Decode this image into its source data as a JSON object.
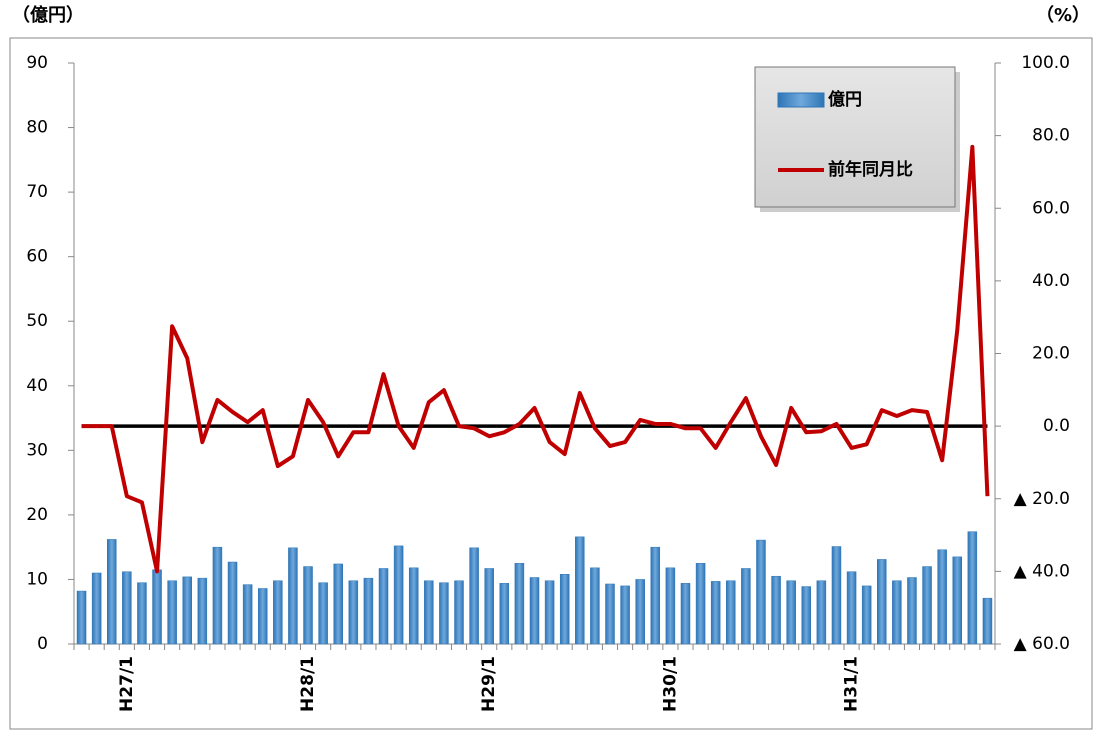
{
  "chart_data": {
    "type": "bar-line",
    "y_axis_label": "（億円）",
    "y2_axis_label": "（%）",
    "categories": [
      null,
      null,
      null,
      "H27/1",
      null,
      null,
      null,
      null,
      null,
      null,
      null,
      null,
      null,
      null,
      null,
      "H28/1",
      null,
      null,
      null,
      null,
      null,
      null,
      null,
      null,
      null,
      null,
      null,
      "H29/1",
      null,
      null,
      null,
      null,
      null,
      null,
      null,
      null,
      null,
      null,
      null,
      "H30/1",
      null,
      null,
      null,
      null,
      null,
      null,
      null,
      null,
      null,
      null,
      null,
      "H31/1",
      null,
      null,
      null,
      null,
      null,
      null,
      null,
      null,
      null
    ],
    "series": [
      {
        "name": "億円",
        "type": "bar",
        "color": "#5b9bd5",
        "values": [
          8.2,
          11,
          16.2,
          11.2,
          9.5,
          11.5,
          9.8,
          10.4,
          10.2,
          15,
          12.7,
          9.2,
          8.6,
          9.8,
          14.9,
          12,
          9.5,
          12.4,
          9.8,
          10.2,
          11.7,
          15.2,
          11.8,
          9.8,
          9.5,
          9.8,
          14.9,
          11.7,
          9.4,
          12.5,
          10.3,
          9.8,
          10.8,
          16.6,
          11.8,
          9.3,
          9,
          10,
          15,
          11.8,
          9.4,
          12.5,
          9.7,
          9.8,
          11.7,
          16.1,
          10.5,
          9.8,
          8.9,
          9.8,
          15.1,
          11.2,
          9,
          13.1,
          9.8,
          10.3,
          12,
          14.6,
          13.5,
          17.4,
          7.1
        ]
      },
      {
        "name": "前年同月比",
        "type": "line",
        "axis": "y2",
        "color": "#c00000",
        "values": [
          0,
          0,
          0,
          -19.3,
          -21,
          -40,
          27.5,
          18.7,
          -4.4,
          7.2,
          3.9,
          1.1,
          4.4,
          -11,
          -8.3,
          7.2,
          1.1,
          -8.3,
          -1.7,
          -1.7,
          14.3,
          0,
          -6,
          6.6,
          9.9,
          0,
          -0.6,
          -2.8,
          -1.7,
          0.6,
          5,
          -4.4,
          -7.7,
          9.1,
          -0.6,
          -5.5,
          -4.4,
          1.7,
          0.6,
          0.6,
          -0.6,
          -0.6,
          -6,
          1.1,
          7.7,
          -2.8,
          -10.7,
          5,
          -1.7,
          -1.4,
          0.6,
          -6,
          -5,
          4.4,
          2.8,
          4.4,
          3.9,
          -9.4,
          26.4,
          76.9,
          -19.3
        ]
      }
    ],
    "ylim": [
      0,
      90
    ],
    "yticks": [
      0,
      10,
      20,
      30,
      40,
      50,
      60,
      70,
      80,
      90
    ],
    "y2lim": [
      -60,
      100
    ],
    "y2ticks": [
      {
        "value": 100,
        "label": "100.0"
      },
      {
        "value": 80,
        "label": "80.0"
      },
      {
        "value": 60,
        "label": "60.0"
      },
      {
        "value": 40,
        "label": "40.0"
      },
      {
        "value": 20,
        "label": "20.0"
      },
      {
        "value": 0,
        "label": "0.0"
      },
      {
        "value": -20,
        "label": "▲ 20.0"
      },
      {
        "value": -40,
        "label": "▲ 40.0"
      },
      {
        "value": -60,
        "label": "▲ 60.0"
      }
    ],
    "y2_reference_line": 0,
    "legend": "top-right"
  }
}
